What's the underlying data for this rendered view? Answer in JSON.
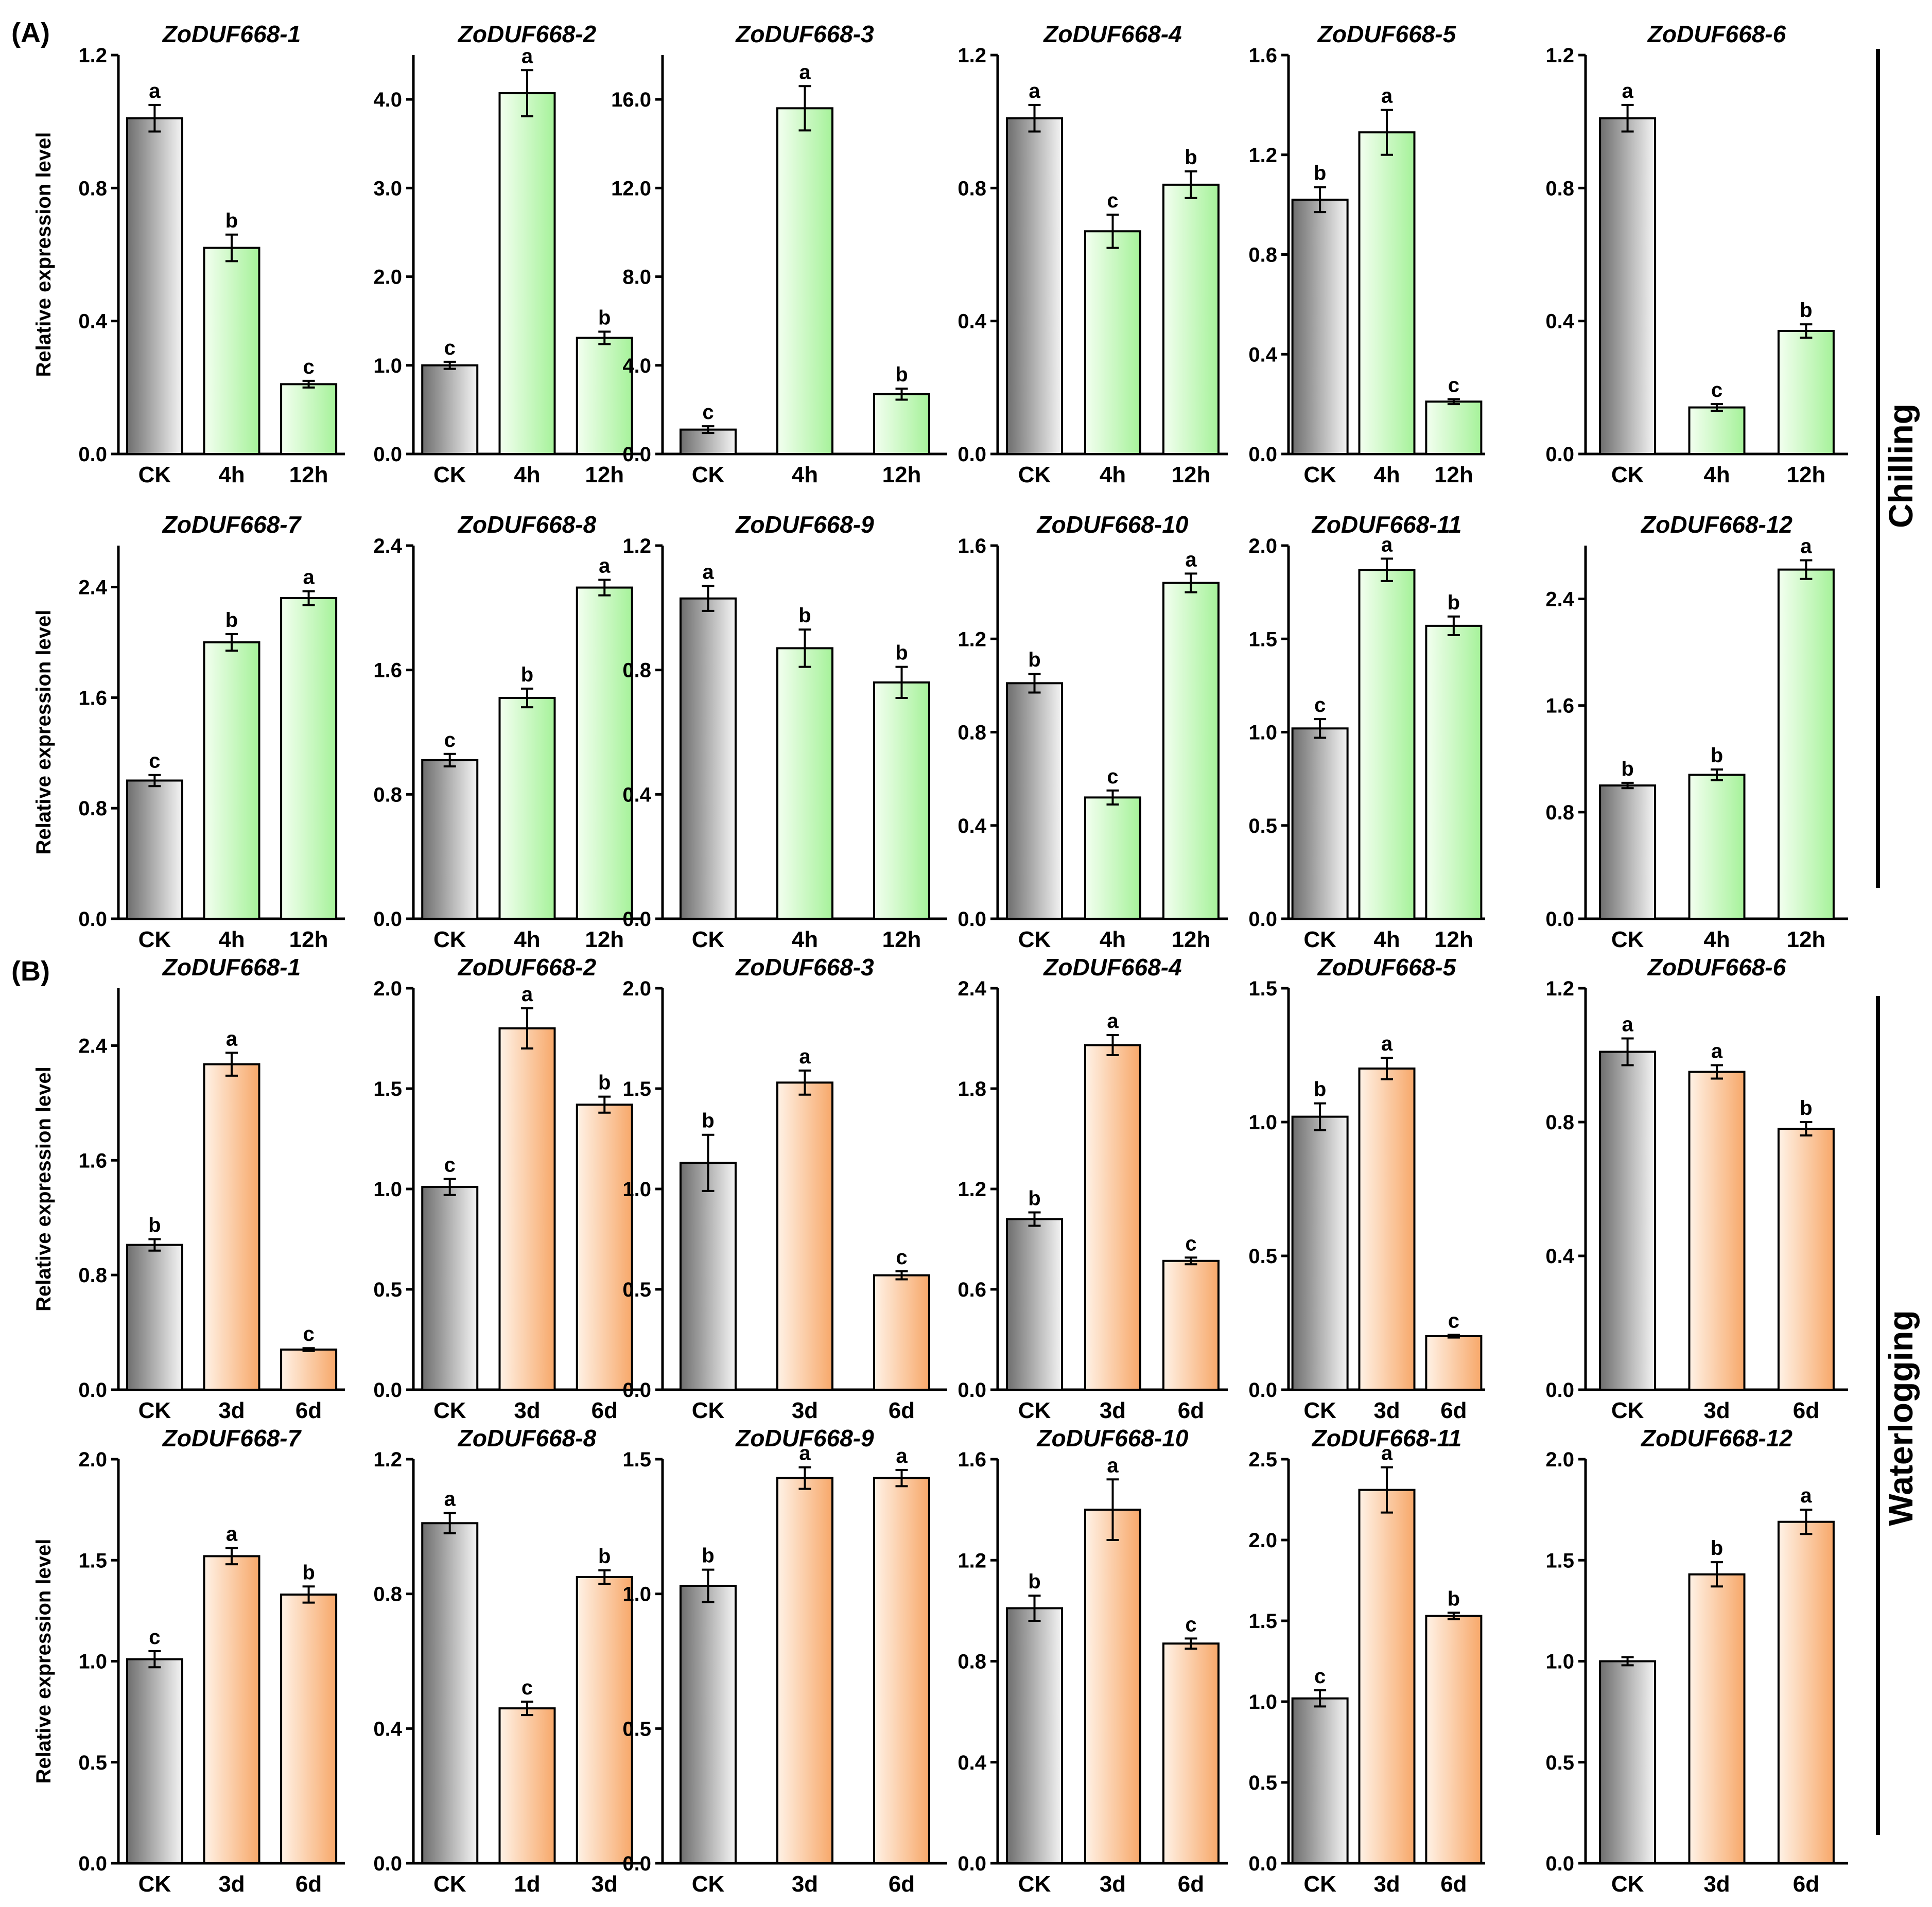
{
  "figure": {
    "panel_labels": [
      "(A)",
      "(B)"
    ],
    "side_labels": [
      "Chilling",
      "Waterlogging"
    ],
    "ylabel": "Relative expression level",
    "colors": {
      "ck_dark": "#6e6e6e",
      "ck_light": "#f4f4f4",
      "chill_light": "#f3fff0",
      "chill_dark": "#a6f29a",
      "water_light": "#fff2e6",
      "water_dark": "#f7a86a",
      "stroke": "#000000"
    }
  },
  "chart_data": [
    {
      "type": "bar",
      "group": "A",
      "title": "ZoDUF668-1",
      "categories": [
        "CK",
        "4h",
        "12h"
      ],
      "values": [
        1.01,
        0.62,
        0.21
      ],
      "errors": [
        0.04,
        0.04,
        0.01
      ],
      "letters": [
        "a",
        "b",
        "c"
      ],
      "ticks": [
        0.0,
        0.4,
        0.8,
        1.2
      ],
      "ylim": [
        0,
        1.2
      ],
      "ylabel": "Relative expression level"
    },
    {
      "type": "bar",
      "group": "A",
      "title": "ZoDUF668-2",
      "categories": [
        "CK",
        "4h",
        "12h"
      ],
      "values": [
        1.0,
        4.07,
        1.31
      ],
      "errors": [
        0.04,
        0.26,
        0.07
      ],
      "letters": [
        "c",
        "a",
        "b"
      ],
      "ticks": [
        "0.0",
        "1.0",
        "2.0",
        "3.0",
        "4.0"
      ],
      "ylim": [
        0,
        4.5
      ],
      "ylabel": ""
    },
    {
      "type": "bar",
      "group": "A",
      "title": "ZoDUF668-3",
      "categories": [
        "CK",
        "4h",
        "12h"
      ],
      "values": [
        1.1,
        15.6,
        2.7
      ],
      "errors": [
        0.15,
        1.0,
        0.25
      ],
      "letters": [
        "c",
        "a",
        "b"
      ],
      "ticks": [
        "0.0",
        "4.0",
        "8.0",
        "12.0",
        "16.0"
      ],
      "ylim": [
        0,
        18
      ],
      "ylabel": ""
    },
    {
      "type": "bar",
      "group": "A",
      "title": "ZoDUF668-4",
      "categories": [
        "CK",
        "4h",
        "12h"
      ],
      "values": [
        1.01,
        0.67,
        0.81
      ],
      "errors": [
        0.04,
        0.05,
        0.04
      ],
      "letters": [
        "a",
        "c",
        "b"
      ],
      "ticks": [
        "0.0",
        "0.4",
        "0.8",
        "1.2"
      ],
      "ylim": [
        0,
        1.2
      ],
      "ylabel": ""
    },
    {
      "type": "bar",
      "group": "A",
      "title": "ZoDUF668-5",
      "categories": [
        "CK",
        "4h",
        "12h"
      ],
      "values": [
        1.02,
        1.29,
        0.21
      ],
      "errors": [
        0.05,
        0.09,
        0.01
      ],
      "letters": [
        "b",
        "a",
        "c"
      ],
      "ticks": [
        "0.0",
        "0.4",
        "0.8",
        "1.2",
        "1.6"
      ],
      "ylim": [
        0,
        1.6
      ],
      "ylabel": ""
    },
    {
      "type": "bar",
      "group": "A",
      "title": "ZoDUF668-6",
      "categories": [
        "CK",
        "4h",
        "12h"
      ],
      "values": [
        1.01,
        0.14,
        0.37
      ],
      "errors": [
        0.04,
        0.01,
        0.02
      ],
      "letters": [
        "a",
        "c",
        "b"
      ],
      "ticks": [
        "0.0",
        "0.4",
        "0.8",
        "1.2"
      ],
      "ylim": [
        0,
        1.2
      ],
      "ylabel": ""
    },
    {
      "type": "bar",
      "group": "A",
      "title": "ZoDUF668-7",
      "categories": [
        "CK",
        "4h",
        "12h"
      ],
      "values": [
        1.0,
        2.0,
        2.32
      ],
      "errors": [
        0.04,
        0.06,
        0.05
      ],
      "letters": [
        "c",
        "b",
        "a"
      ],
      "ticks": [
        "0.0",
        "0.8",
        "1.6",
        "2.4"
      ],
      "ylim": [
        0,
        2.7
      ],
      "ylabel": "Relative expression level"
    },
    {
      "type": "bar",
      "group": "A",
      "title": "ZoDUF668-8",
      "categories": [
        "CK",
        "4h",
        "12h"
      ],
      "values": [
        1.02,
        1.42,
        2.13
      ],
      "errors": [
        0.04,
        0.06,
        0.05
      ],
      "letters": [
        "c",
        "b",
        "a"
      ],
      "ticks": [
        "0.0",
        "0.8",
        "1.6",
        "2.4"
      ],
      "ylim": [
        0,
        2.4
      ],
      "ylabel": ""
    },
    {
      "type": "bar",
      "group": "A",
      "title": "ZoDUF668-9",
      "categories": [
        "CK",
        "4h",
        "12h"
      ],
      "values": [
        1.03,
        0.87,
        0.76
      ],
      "errors": [
        0.04,
        0.06,
        0.05
      ],
      "letters": [
        "a",
        "b",
        "b"
      ],
      "ticks": [
        "0.0",
        "0.4",
        "0.8",
        "1.2"
      ],
      "ylim": [
        0,
        1.2
      ],
      "ylabel": ""
    },
    {
      "type": "bar",
      "group": "A",
      "title": "ZoDUF668-10",
      "categories": [
        "CK",
        "4h",
        "12h"
      ],
      "values": [
        1.01,
        0.52,
        1.44
      ],
      "errors": [
        0.04,
        0.03,
        0.04
      ],
      "letters": [
        "b",
        "c",
        "a"
      ],
      "ticks": [
        "0.0",
        "0.4",
        "0.8",
        "1.2",
        "1.6"
      ],
      "ylim": [
        0,
        1.6
      ],
      "ylabel": ""
    },
    {
      "type": "bar",
      "group": "A",
      "title": "ZoDUF668-11",
      "categories": [
        "CK",
        "4h",
        "12h"
      ],
      "values": [
        1.02,
        1.87,
        1.57
      ],
      "errors": [
        0.05,
        0.06,
        0.05
      ],
      "letters": [
        "c",
        "a",
        "b"
      ],
      "ticks": [
        "0.0",
        "0.5",
        "1.0",
        "1.5",
        "2.0"
      ],
      "ylim": [
        0,
        2.0
      ],
      "ylabel": ""
    },
    {
      "type": "bar",
      "group": "A",
      "title": "ZoDUF668-12",
      "categories": [
        "CK",
        "4h",
        "12h"
      ],
      "values": [
        1.0,
        1.08,
        2.62
      ],
      "errors": [
        0.02,
        0.04,
        0.07
      ],
      "letters": [
        "b",
        "b",
        "a"
      ],
      "ticks": [
        "0.0",
        "0.8",
        "1.6",
        "2.4"
      ],
      "ylim": [
        0,
        2.8
      ],
      "ylabel": ""
    },
    {
      "type": "bar",
      "group": "B",
      "title": "ZoDUF668-1",
      "categories": [
        "CK",
        "3d",
        "6d"
      ],
      "values": [
        1.01,
        2.27,
        0.28
      ],
      "errors": [
        0.04,
        0.08,
        0.01
      ],
      "letters": [
        "b",
        "a",
        "c"
      ],
      "ticks": [
        "0.0",
        "0.8",
        "1.6",
        "2.4"
      ],
      "ylim": [
        0,
        2.8
      ],
      "ylabel": "Relative expression level"
    },
    {
      "type": "bar",
      "group": "B",
      "title": "ZoDUF668-2",
      "categories": [
        "CK",
        "3d",
        "6d"
      ],
      "values": [
        1.01,
        1.8,
        1.42
      ],
      "errors": [
        0.04,
        0.1,
        0.04
      ],
      "letters": [
        "c",
        "a",
        "b"
      ],
      "ticks": [
        "0.0",
        "0.5",
        "1.0",
        "1.5",
        "2.0"
      ],
      "ylim": [
        0,
        2.0
      ],
      "ylabel": ""
    },
    {
      "type": "bar",
      "group": "B",
      "title": "ZoDUF668-3",
      "categories": [
        "CK",
        "3d",
        "6d"
      ],
      "values": [
        1.13,
        1.53,
        0.57
      ],
      "errors": [
        0.14,
        0.06,
        0.02
      ],
      "letters": [
        "b",
        "a",
        "c"
      ],
      "ticks": [
        "0.0",
        "0.5",
        "1.0",
        "1.5",
        "2.0"
      ],
      "ylim": [
        0,
        2.0
      ],
      "ylabel": ""
    },
    {
      "type": "bar",
      "group": "B",
      "title": "ZoDUF668-4",
      "categories": [
        "CK",
        "3d",
        "6d"
      ],
      "values": [
        1.02,
        2.06,
        0.77
      ],
      "errors": [
        0.04,
        0.06,
        0.02
      ],
      "letters": [
        "b",
        "a",
        "c"
      ],
      "ticks": [
        "0.0",
        "0.6",
        "1.2",
        "1.8",
        "2.4"
      ],
      "ylim": [
        0,
        2.4
      ],
      "ylabel": ""
    },
    {
      "type": "bar",
      "group": "B",
      "title": "ZoDUF668-5",
      "categories": [
        "CK",
        "3d",
        "6d"
      ],
      "values": [
        1.02,
        1.2,
        0.2
      ],
      "errors": [
        0.05,
        0.04,
        0.005
      ],
      "letters": [
        "b",
        "a",
        "c"
      ],
      "ticks": [
        "0.0",
        "0.5",
        "1.0",
        "1.5"
      ],
      "ylim": [
        0,
        1.5
      ],
      "ylabel": ""
    },
    {
      "type": "bar",
      "group": "B",
      "title": "ZoDUF668-6",
      "categories": [
        "CK",
        "3d",
        "6d"
      ],
      "values": [
        1.01,
        0.95,
        0.78
      ],
      "errors": [
        0.04,
        0.02,
        0.02
      ],
      "letters": [
        "a",
        "a",
        "b"
      ],
      "ticks": [
        "0.0",
        "0.4",
        "0.8",
        "1.2"
      ],
      "ylim": [
        0,
        1.2
      ],
      "ylabel": ""
    },
    {
      "type": "bar",
      "group": "B",
      "title": "ZoDUF668-7",
      "categories": [
        "CK",
        "3d",
        "6d"
      ],
      "values": [
        1.01,
        1.52,
        1.33
      ],
      "errors": [
        0.04,
        0.04,
        0.04
      ],
      "letters": [
        "c",
        "a",
        "b"
      ],
      "ticks": [
        "0.0",
        "0.5",
        "1.0",
        "1.5",
        "2.0"
      ],
      "ylim": [
        0,
        2.0
      ],
      "ylabel": "Relative expression level"
    },
    {
      "type": "bar",
      "group": "B",
      "title": "ZoDUF668-8",
      "categories": [
        "CK",
        "1d",
        "3d"
      ],
      "values": [
        1.01,
        0.46,
        0.85
      ],
      "errors": [
        0.03,
        0.02,
        0.02
      ],
      "letters": [
        "a",
        "c",
        "b"
      ],
      "ticks": [
        "0.0",
        "0.4",
        "0.8",
        "1.2"
      ],
      "ylim": [
        0,
        1.2
      ],
      "ylabel": ""
    },
    {
      "type": "bar",
      "group": "B",
      "title": "ZoDUF668-9",
      "categories": [
        "CK",
        "3d",
        "6d"
      ],
      "values": [
        1.03,
        1.43,
        1.43
      ],
      "errors": [
        0.06,
        0.04,
        0.03
      ],
      "letters": [
        "b",
        "a",
        "a"
      ],
      "ticks": [
        "0.0",
        "0.5",
        "1.0",
        "1.5"
      ],
      "ylim": [
        0,
        1.5
      ],
      "ylabel": ""
    },
    {
      "type": "bar",
      "group": "B",
      "title": "ZoDUF668-10",
      "categories": [
        "CK",
        "3d",
        "6d"
      ],
      "values": [
        1.01,
        1.4,
        0.87
      ],
      "errors": [
        0.05,
        0.12,
        0.02
      ],
      "letters": [
        "b",
        "a",
        "c"
      ],
      "ticks": [
        "0.0",
        "0.4",
        "0.8",
        "1.2",
        "1.6"
      ],
      "ylim": [
        0,
        1.6
      ],
      "ylabel": ""
    },
    {
      "type": "bar",
      "group": "B",
      "title": "ZoDUF668-11",
      "categories": [
        "CK",
        "3d",
        "6d"
      ],
      "values": [
        1.02,
        2.31,
        1.53
      ],
      "errors": [
        0.05,
        0.14,
        0.02
      ],
      "letters": [
        "c",
        "a",
        "b"
      ],
      "ticks": [
        "0.0",
        "0.5",
        "1.0",
        "1.5",
        "2.0",
        "2.5"
      ],
      "ylim": [
        0,
        2.5
      ],
      "ylabel": ""
    },
    {
      "type": "bar",
      "group": "B",
      "title": "ZoDUF668-12",
      "categories": [
        "CK",
        "3d",
        "6d"
      ],
      "values": [
        1.0,
        1.43,
        1.69
      ],
      "errors": [
        0.02,
        0.06,
        0.06
      ],
      "letters": [
        "",
        "b",
        "a"
      ],
      "ticks": [
        "0.0",
        "0.5",
        "1.0",
        "1.5",
        "2.0"
      ],
      "ylim": [
        0,
        2.0
      ],
      "ylabel": ""
    }
  ]
}
